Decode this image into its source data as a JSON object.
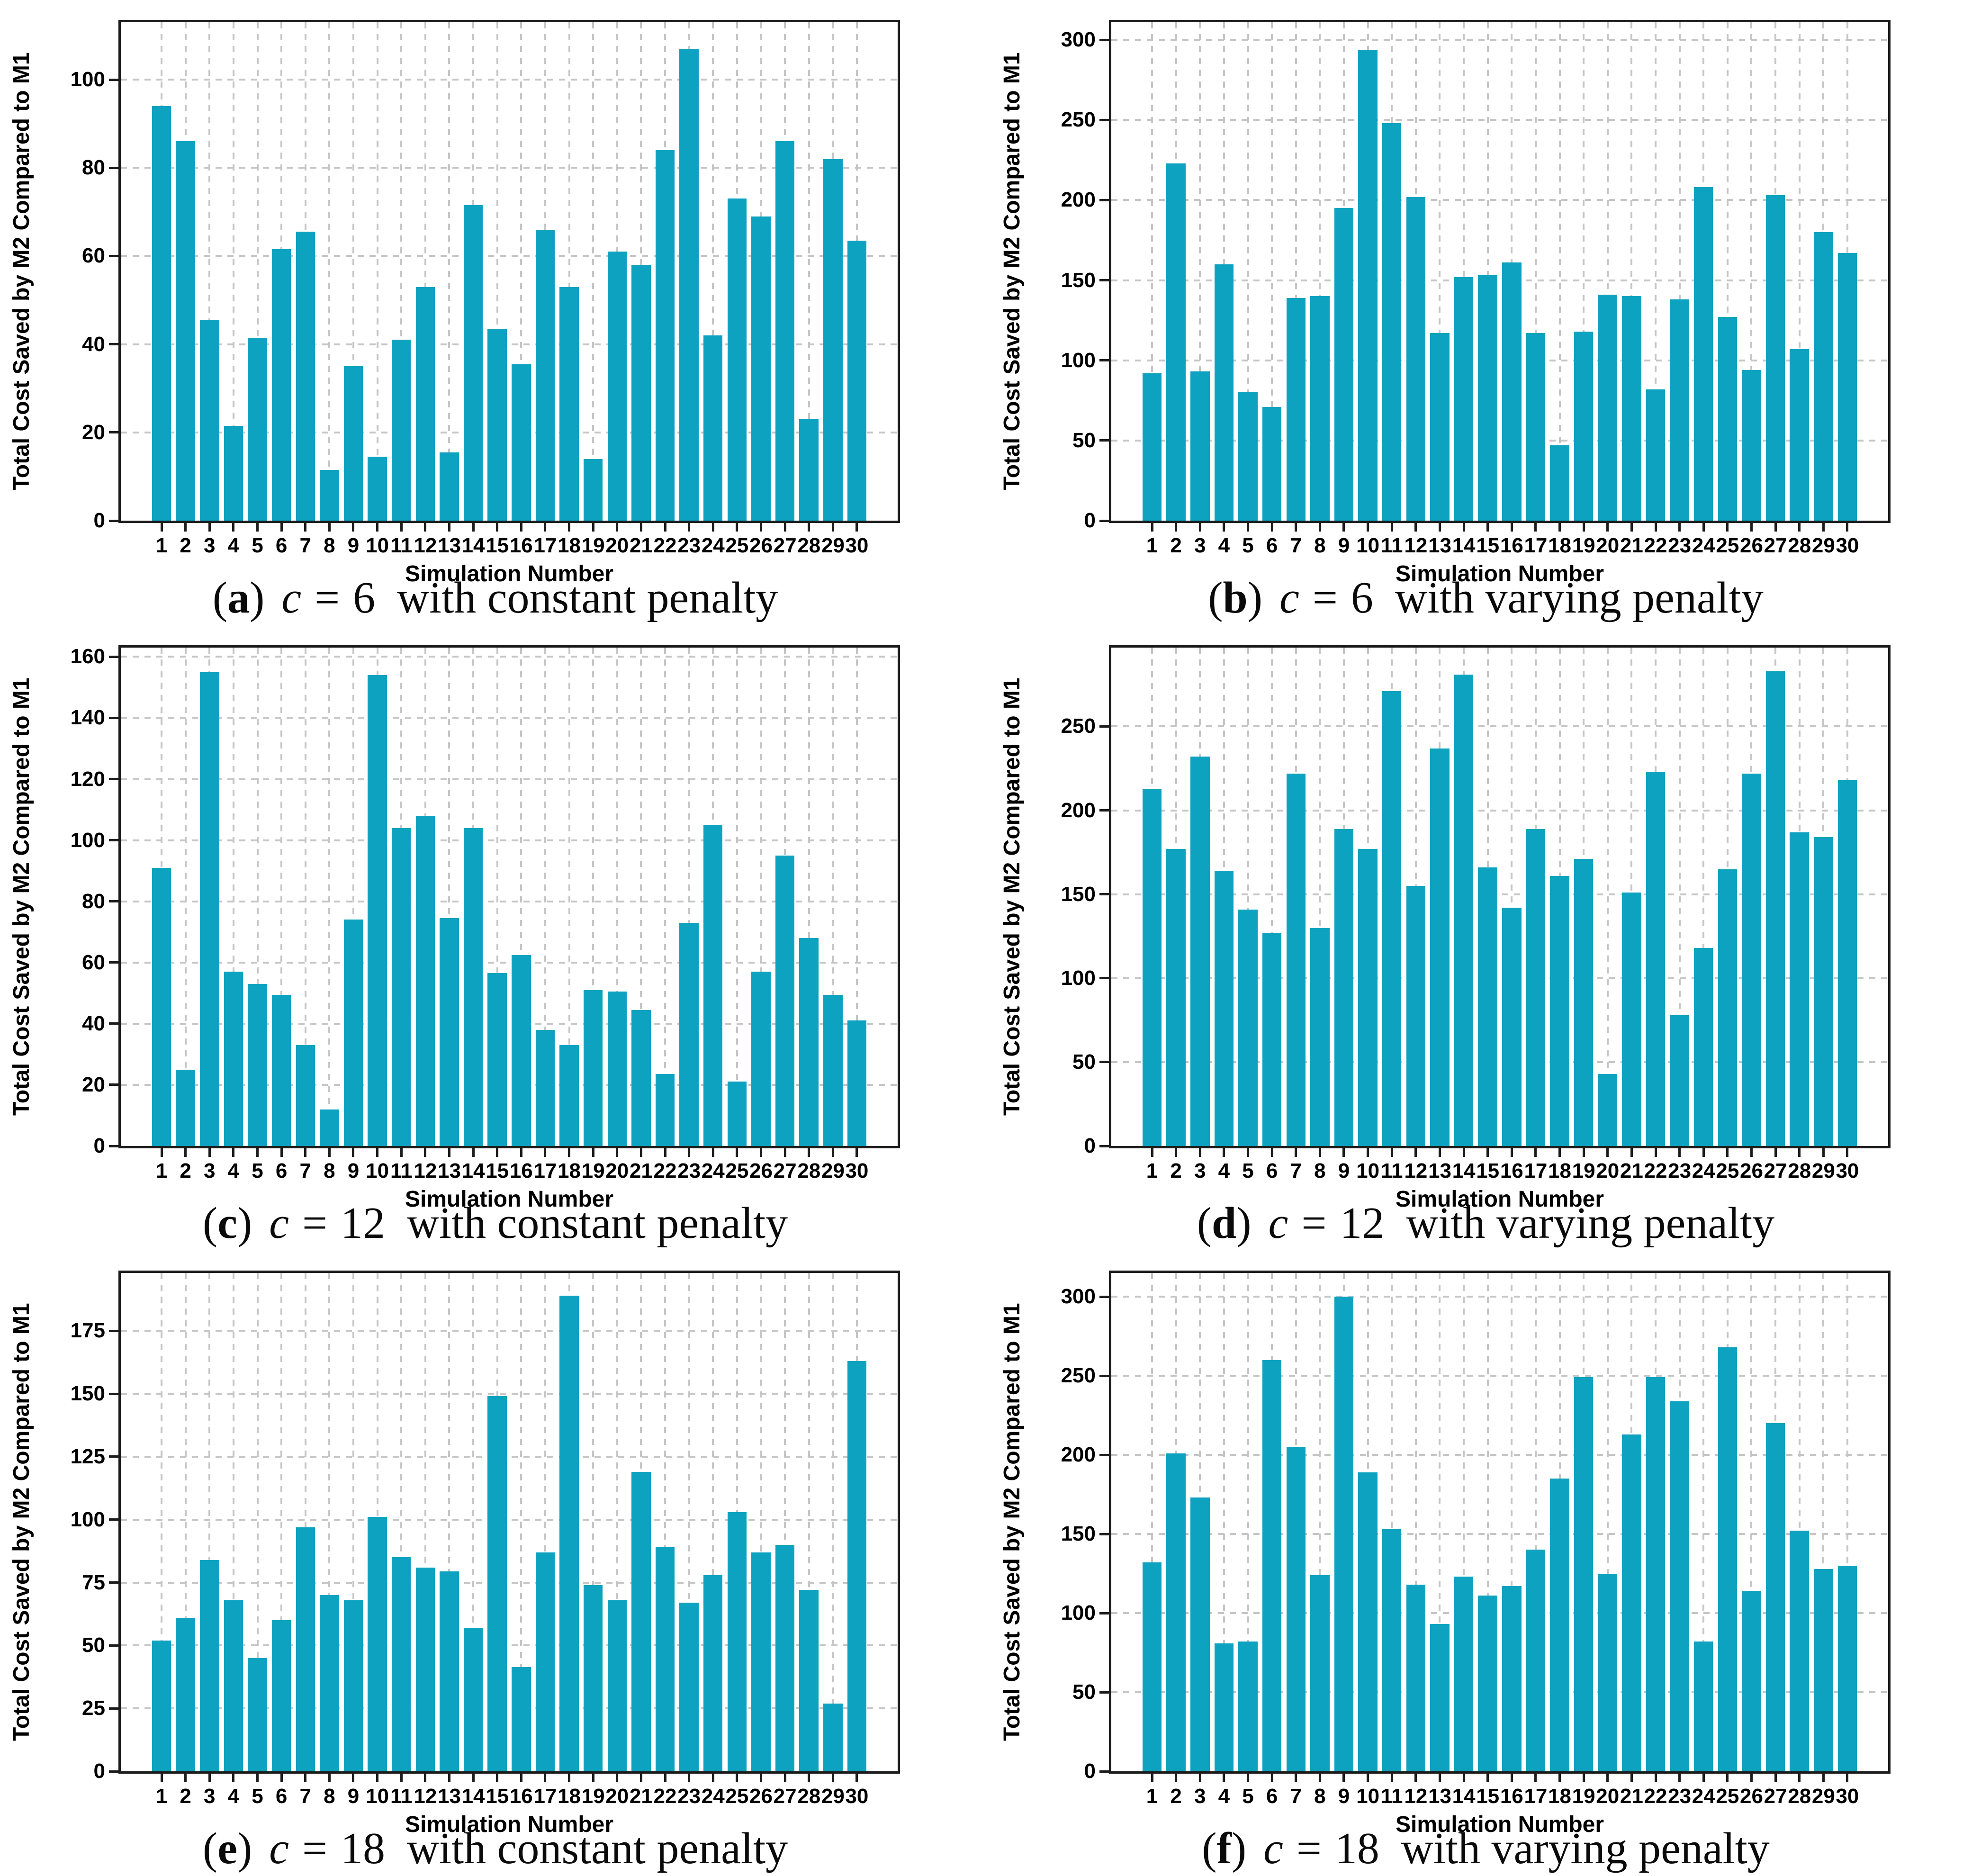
{
  "figure": {
    "xlabel": "Simulation Number",
    "ylabel": "Total Cost Saved by M2 Compared to M1",
    "bar_color": "#0da2c0",
    "grid_color": "#c5c5c5",
    "axis_color": "#1c1c1c",
    "open_paren": "(",
    "close_paren": ")",
    "categories": [
      "1",
      "2",
      "3",
      "4",
      "5",
      "6",
      "7",
      "8",
      "9",
      "10",
      "11",
      "12",
      "13",
      "14",
      "15",
      "16",
      "17",
      "18",
      "19",
      "20",
      "21",
      "22",
      "23",
      "24",
      "25",
      "26",
      "27",
      "28",
      "29",
      "30"
    ]
  },
  "chart_data": [
    {
      "id": "a",
      "type": "bar",
      "title": "",
      "xlabel": "Simulation Number",
      "ylabel": "Total Cost Saved by M2 Compared to M1",
      "grid": true,
      "legend": "none",
      "caption": {
        "tag": "a",
        "var": "c",
        "eq": "=",
        "value": "6",
        "suffix": "with constant penalty"
      },
      "ylim": [
        0,
        113
      ],
      "yticks": [
        0,
        20,
        40,
        60,
        80,
        100
      ],
      "values": [
        94,
        86,
        45.5,
        21.5,
        41.5,
        61.5,
        65.5,
        11.5,
        35,
        14.5,
        41,
        53,
        15.5,
        71.5,
        43.5,
        35.5,
        66,
        53,
        14,
        61,
        58,
        84,
        107,
        42,
        73,
        69,
        86,
        23,
        82,
        63.5
      ]
    },
    {
      "id": "b",
      "type": "bar",
      "title": "",
      "xlabel": "Simulation Number",
      "ylabel": "Total Cost Saved by M2 Compared to M1",
      "grid": true,
      "legend": "none",
      "caption": {
        "tag": "b",
        "var": "c",
        "eq": "=",
        "value": "6",
        "suffix": "with varying penalty"
      },
      "ylim": [
        0,
        311
      ],
      "yticks": [
        0,
        50,
        100,
        150,
        200,
        250,
        300
      ],
      "values": [
        92,
        223,
        93,
        160,
        80,
        71,
        139,
        140,
        195,
        294,
        248,
        202,
        117,
        152,
        153,
        161,
        117,
        47,
        118,
        141,
        140,
        82,
        138,
        208,
        127,
        94,
        203,
        107,
        180,
        167
      ]
    },
    {
      "id": "c",
      "type": "bar",
      "title": "",
      "xlabel": "Simulation Number",
      "ylabel": "Total Cost Saved by M2 Compared to M1",
      "grid": true,
      "legend": "none",
      "caption": {
        "tag": "c",
        "var": "c",
        "eq": "=",
        "value": "12",
        "suffix": "with constant penalty"
      },
      "ylim": [
        0,
        163
      ],
      "yticks": [
        0,
        20,
        40,
        60,
        80,
        100,
        120,
        140,
        160
      ],
      "values": [
        91,
        25,
        155,
        57,
        53,
        49.5,
        33,
        12,
        74,
        154,
        104,
        108,
        74.5,
        104,
        56.5,
        62.5,
        38,
        33,
        51,
        50.5,
        44.5,
        23.5,
        73,
        105,
        21,
        57,
        95,
        68,
        49.5,
        41
      ]
    },
    {
      "id": "d",
      "type": "bar",
      "title": "",
      "xlabel": "Simulation Number",
      "ylabel": "Total Cost Saved by M2 Compared to M1",
      "grid": true,
      "legend": "none",
      "caption": {
        "tag": "d",
        "var": "c",
        "eq": "=",
        "value": "12",
        "suffix": "with varying penalty"
      },
      "ylim": [
        0,
        297
      ],
      "yticks": [
        0,
        50,
        100,
        150,
        200,
        250
      ],
      "values": [
        213,
        177,
        232,
        164,
        141,
        127,
        222,
        130,
        189,
        177,
        271,
        155,
        237,
        281,
        166,
        142,
        189,
        161,
        171,
        43,
        151,
        223,
        78,
        118,
        165,
        222,
        283,
        187,
        184,
        218
      ]
    },
    {
      "id": "e",
      "type": "bar",
      "title": "",
      "xlabel": "Simulation Number",
      "ylabel": "Total Cost Saved by M2 Compared to M1",
      "grid": true,
      "legend": "none",
      "caption": {
        "tag": "e",
        "var": "c",
        "eq": "=",
        "value": "18",
        "suffix": "with constant penalty"
      },
      "ylim": [
        0,
        198
      ],
      "yticks": [
        0,
        25,
        50,
        75,
        100,
        125,
        150,
        175
      ],
      "values": [
        52,
        61,
        84,
        68,
        45,
        60,
        97,
        70,
        68,
        101,
        85,
        81,
        79.5,
        57,
        149,
        41.5,
        87,
        189,
        74,
        68,
        119,
        89,
        67,
        78,
        103,
        87,
        90,
        72,
        27,
        163
      ]
    },
    {
      "id": "f",
      "type": "bar",
      "title": "",
      "xlabel": "Simulation Number",
      "ylabel": "Total Cost Saved by M2 Compared to M1",
      "grid": true,
      "legend": "none",
      "caption": {
        "tag": "f",
        "var": "c",
        "eq": "=",
        "value": "18",
        "suffix": "with varying penalty"
      },
      "ylim": [
        0,
        315
      ],
      "yticks": [
        0,
        50,
        100,
        150,
        200,
        250,
        300
      ],
      "values": [
        132,
        201,
        173,
        81,
        82,
        260,
        205,
        124,
        300,
        189,
        153,
        118,
        93,
        123,
        111,
        117,
        140,
        185,
        249,
        125,
        213,
        249,
        234,
        82,
        268,
        114,
        220,
        152,
        128,
        130
      ]
    }
  ]
}
